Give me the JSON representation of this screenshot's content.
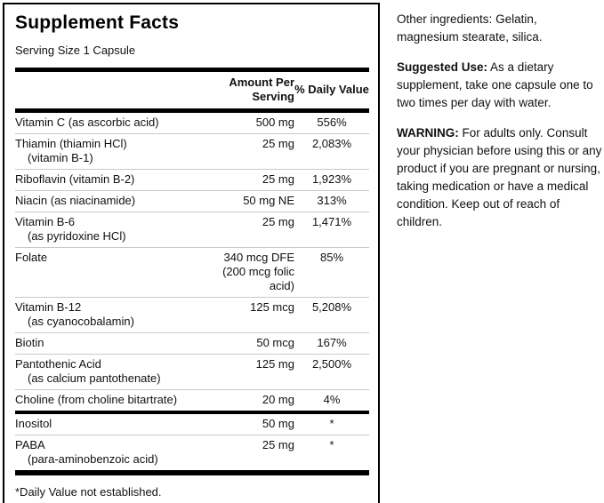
{
  "facts": {
    "title": "Supplement Facts",
    "serving_size": "Serving Size 1 Capsule",
    "header": {
      "amount": "Amount Per Serving",
      "daily_value": "% Daily Value"
    },
    "rows": [
      {
        "name": "Vitamin C (as ascorbic acid)",
        "sub": "",
        "amount": "500 mg",
        "dv": "556%"
      },
      {
        "name": "Thiamin (thiamin HCl)",
        "sub": "(vitamin B-1)",
        "amount": "25 mg",
        "dv": "2,083%"
      },
      {
        "name": "Riboflavin (vitamin B-2)",
        "sub": "",
        "amount": "25 mg",
        "dv": "1,923%"
      },
      {
        "name": "Niacin (as niacinamide)",
        "sub": "",
        "amount": "50 mg NE",
        "dv": "313%"
      },
      {
        "name": "Vitamin B-6",
        "sub": "(as pyridoxine HCl)",
        "amount": "25 mg",
        "dv": "1,471%"
      },
      {
        "name": "Folate",
        "sub": "",
        "amount": "340 mcg DFE (200 mcg folic acid)",
        "dv": "85%"
      },
      {
        "name": "Vitamin B-12",
        "sub": "(as cyanocobalamin)",
        "amount": "125 mcg",
        "dv": "5,208%"
      },
      {
        "name": "Biotin",
        "sub": "",
        "amount": "50 mcg",
        "dv": "167%"
      },
      {
        "name": "Pantothenic Acid",
        "sub": "(as calcium pantothenate)",
        "amount": "125 mg",
        "dv": "2,500%"
      },
      {
        "name": "Choline (from choline bitartrate)",
        "sub": "",
        "amount": "20 mg",
        "dv": "4%"
      },
      {
        "name": "Inositol",
        "sub": "",
        "amount": "50 mg",
        "dv": "*"
      },
      {
        "name": "PABA",
        "sub": "(para-aminobenzoic acid)",
        "amount": "25 mg",
        "dv": "*"
      }
    ],
    "footnote": "*Daily Value not established."
  },
  "info": {
    "other_ingredients_label": "Other ingredients:",
    "other_ingredients_text": "Gelatin, magnesium stearate, silica.",
    "suggested_use_label": "Suggested Use:",
    "suggested_use_text": "As a dietary supplement, take one capsule one to two times per day with water.",
    "warning_label": "WARNING:",
    "warning_text": "For adults only. Consult your physician before using this or any product if you are pregnant or nursing, taking medication or have a medical condition. Keep out of reach of children."
  },
  "colors": {
    "rule_black": "#000000",
    "row_separator": "#c9c9c9",
    "panel_border": "#000000",
    "background": "#ffffff"
  }
}
